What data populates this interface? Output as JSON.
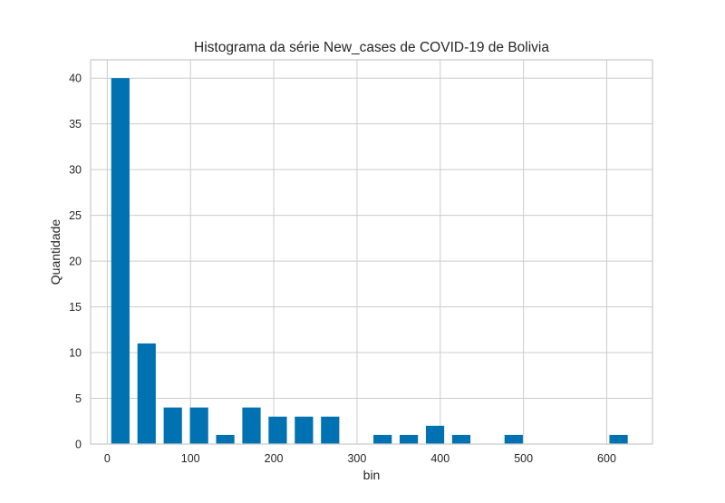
{
  "chart_data": {
    "type": "bar",
    "title": "Histograma da série New_cases de COVID-19 de Bolivia",
    "xlabel": "bin",
    "ylabel": "Quantidade",
    "xlim": [
      -20,
      655
    ],
    "ylim": [
      0,
      42
    ],
    "xticks": [
      0,
      100,
      200,
      300,
      400,
      500,
      600
    ],
    "yticks": [
      0,
      5,
      10,
      15,
      20,
      25,
      30,
      35,
      40
    ],
    "grid": true,
    "bin_width": 31.5,
    "bar_width": 22,
    "bars": [
      {
        "x": 15.75,
        "value": 40
      },
      {
        "x": 47.25,
        "value": 11
      },
      {
        "x": 78.75,
        "value": 4
      },
      {
        "x": 110.25,
        "value": 4
      },
      {
        "x": 141.75,
        "value": 1
      },
      {
        "x": 173.25,
        "value": 4
      },
      {
        "x": 204.75,
        "value": 3
      },
      {
        "x": 236.25,
        "value": 3
      },
      {
        "x": 267.75,
        "value": 3
      },
      {
        "x": 330.75,
        "value": 1
      },
      {
        "x": 362.25,
        "value": 1
      },
      {
        "x": 393.75,
        "value": 2
      },
      {
        "x": 425.25,
        "value": 1
      },
      {
        "x": 488.25,
        "value": 1
      },
      {
        "x": 614.25,
        "value": 1
      }
    ],
    "colors": {
      "bar": "#0072b2",
      "grid": "#cccccc",
      "frame": "#cccccc",
      "background": "#ffffff"
    }
  }
}
